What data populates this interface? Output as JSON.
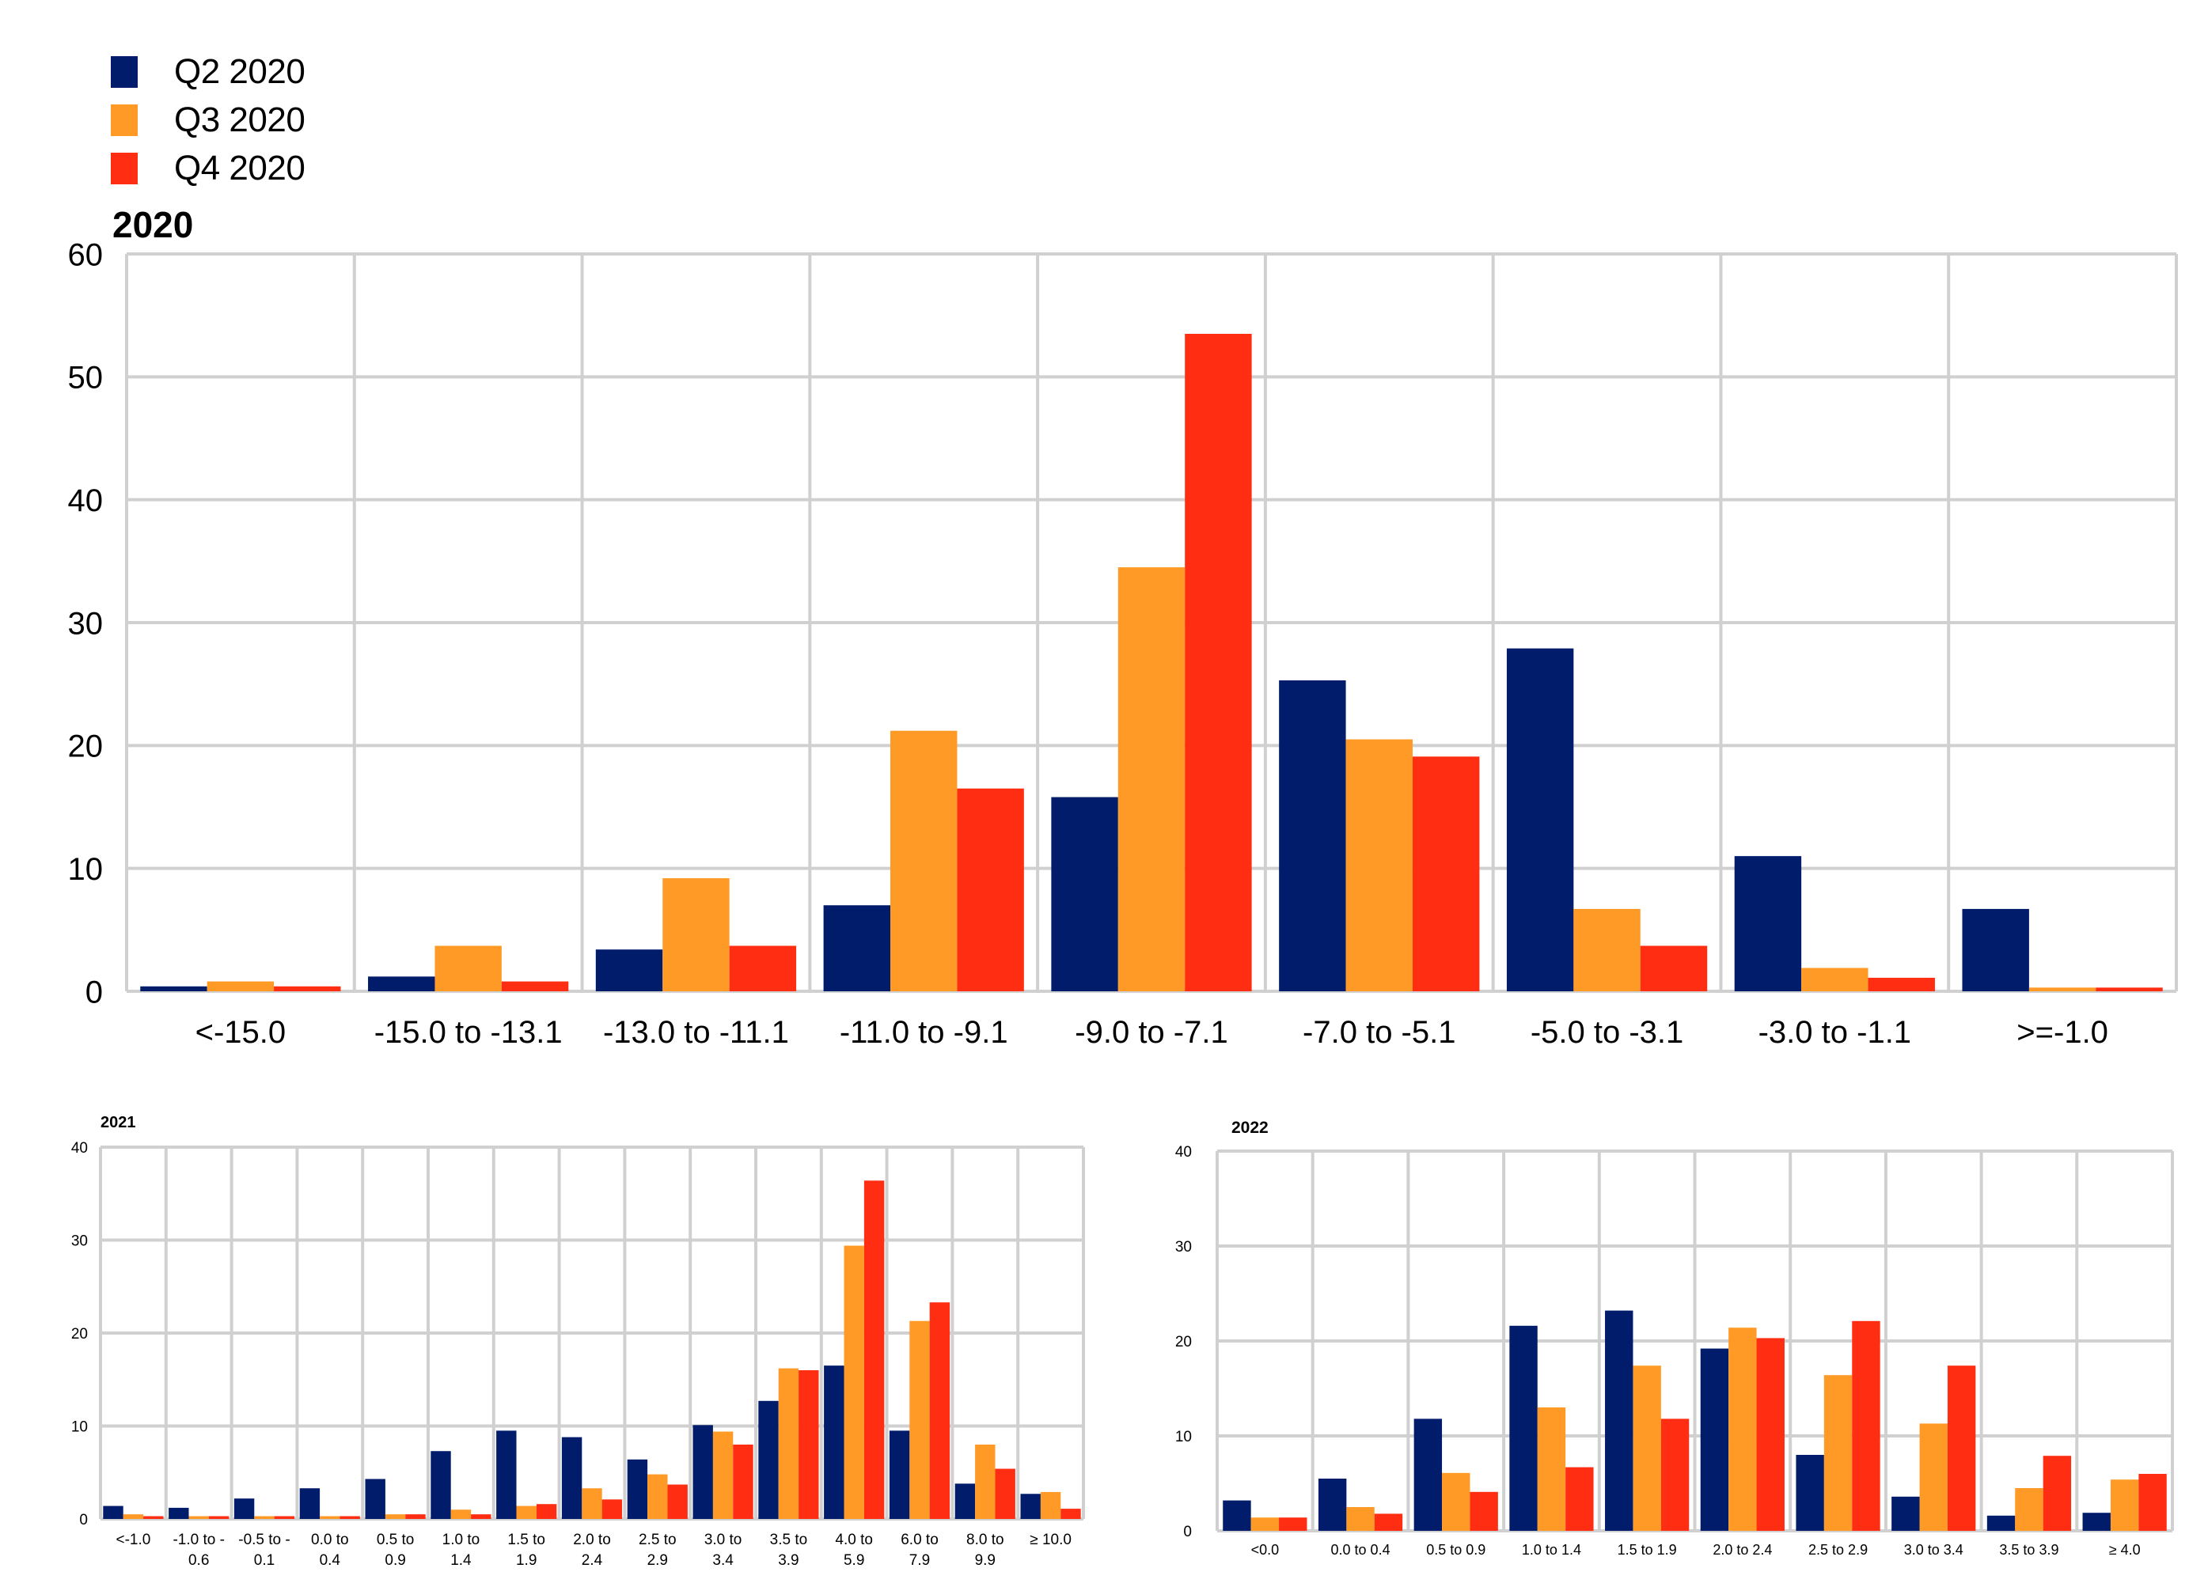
{
  "legend": {
    "items": [
      {
        "label": "Q2 2020",
        "color": "#001c6b"
      },
      {
        "label": "Q3 2020",
        "color": "#ff9a26"
      },
      {
        "label": "Q4 2020",
        "color": "#ff2e12"
      }
    ]
  },
  "chart_data": [
    {
      "type": "bar",
      "title": "2020",
      "ylim": [
        0,
        60
      ],
      "yticks": [
        0,
        10,
        20,
        30,
        40,
        50,
        60
      ],
      "grid": true,
      "categories": [
        [
          "<-15.0"
        ],
        [
          "-15.0 to -13.1"
        ],
        [
          "-13.0 to -11.1"
        ],
        [
          "-11.0 to -9.1"
        ],
        [
          "-9.0 to -7.1"
        ],
        [
          "-7.0 to -5.1"
        ],
        [
          "-5.0 to -3.1"
        ],
        [
          "-3.0 to -1.1"
        ],
        [
          ">=-1.0"
        ]
      ],
      "series": [
        {
          "name": "Q2 2020",
          "color": "#001c6b",
          "values": [
            0.4,
            1.2,
            3.4,
            7.0,
            15.8,
            25.3,
            27.9,
            11.0,
            6.7
          ]
        },
        {
          "name": "Q3 2020",
          "color": "#ff9a26",
          "values": [
            0.8,
            3.7,
            9.2,
            21.2,
            34.5,
            20.5,
            6.7,
            1.9,
            0.3
          ]
        },
        {
          "name": "Q4 2020",
          "color": "#ff2e12",
          "values": [
            0.4,
            0.8,
            3.7,
            16.5,
            53.5,
            19.1,
            3.7,
            1.1,
            0.3
          ]
        }
      ]
    },
    {
      "type": "bar",
      "title": "2021",
      "ylim": [
        0,
        40
      ],
      "yticks": [
        0,
        10,
        20,
        30,
        40
      ],
      "grid": true,
      "categories": [
        [
          "<-1.0"
        ],
        [
          "-1.0 to -",
          "0.6"
        ],
        [
          "-0.5 to -",
          "0.1"
        ],
        [
          "0.0 to",
          "0.4"
        ],
        [
          "0.5 to",
          "0.9"
        ],
        [
          "1.0  to",
          "1.4"
        ],
        [
          "1.5  to",
          "1.9"
        ],
        [
          "2.0  to",
          "2.4"
        ],
        [
          "2.5  to",
          "2.9"
        ],
        [
          "3.0  to",
          "3.4"
        ],
        [
          "3.5  to",
          "3.9"
        ],
        [
          "4.0 to",
          "5.9"
        ],
        [
          "6.0 to",
          "7.9"
        ],
        [
          "8.0 to",
          "9.9"
        ],
        [
          "≥ 10.0"
        ]
      ],
      "series": [
        {
          "name": "Q2 2020",
          "color": "#001c6b",
          "values": [
            1.4,
            1.2,
            2.2,
            3.3,
            4.3,
            7.3,
            9.5,
            8.8,
            6.4,
            10.1,
            12.7,
            16.5,
            9.5,
            3.8,
            2.7
          ]
        },
        {
          "name": "Q3 2020",
          "color": "#ff9a26",
          "values": [
            0.5,
            0.3,
            0.3,
            0.3,
            0.5,
            1.0,
            1.4,
            3.3,
            4.8,
            9.4,
            16.2,
            29.4,
            21.3,
            8.0,
            2.9
          ]
        },
        {
          "name": "Q4 2020",
          "color": "#ff2e12",
          "values": [
            0.3,
            0.3,
            0.3,
            0.3,
            0.5,
            0.5,
            1.6,
            2.1,
            3.7,
            8.0,
            16.0,
            36.4,
            23.3,
            5.4,
            1.1
          ]
        }
      ]
    },
    {
      "type": "bar",
      "title": "2022",
      "ylim": [
        0,
        40
      ],
      "yticks": [
        0,
        10,
        20,
        30,
        40
      ],
      "grid": true,
      "categories": [
        [
          "<0.0"
        ],
        [
          "0.0 to 0.4"
        ],
        [
          "0.5 to 0.9"
        ],
        [
          "1.0 to 1.4"
        ],
        [
          "1.5 to 1.9"
        ],
        [
          "2.0 to 2.4"
        ],
        [
          "2.5 to 2.9"
        ],
        [
          "3.0 to 3.4"
        ],
        [
          "3.5 to 3.9"
        ],
        [
          "≥ 4.0"
        ]
      ],
      "series": [
        {
          "name": "Q2 2020",
          "color": "#001c6b",
          "values": [
            3.2,
            5.5,
            11.8,
            21.6,
            23.2,
            19.2,
            8.0,
            3.6,
            1.6,
            1.9
          ]
        },
        {
          "name": "Q3 2020",
          "color": "#ff9a26",
          "values": [
            1.4,
            2.5,
            6.1,
            13.0,
            17.4,
            21.4,
            16.4,
            11.3,
            4.5,
            5.4
          ]
        },
        {
          "name": "Q4 2020",
          "color": "#ff2e12",
          "values": [
            1.4,
            1.8,
            4.1,
            6.7,
            11.8,
            20.3,
            22.1,
            17.4,
            7.9,
            6.0
          ]
        }
      ]
    }
  ]
}
